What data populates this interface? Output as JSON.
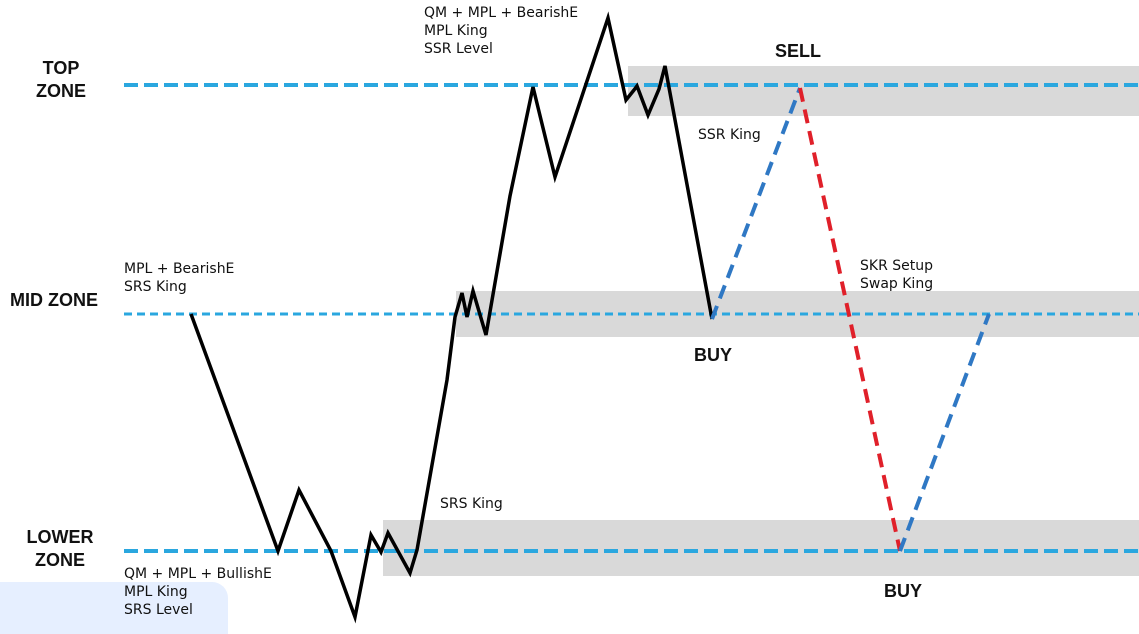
{
  "zones": {
    "top": [
      "TOP",
      "ZONE"
    ],
    "mid": "MID ZONE",
    "lower": [
      "LOWER",
      "ZONE"
    ]
  },
  "notes": {
    "top_confluence": [
      "QM + MPL + BearishE",
      "MPL King",
      "SSR Level"
    ],
    "mid_confluence": [
      "MPL + BearishE",
      "SRS King"
    ],
    "lower_confluence": [
      "QM + MPL + BullishE",
      "MPL King",
      "SRS Level"
    ],
    "ssr_king": "SSR King",
    "srs_king": "SRS King",
    "skr": [
      "SKR Setup",
      "Swap King"
    ]
  },
  "signals": {
    "sell": "SELL",
    "buy_mid": "BUY",
    "buy_low": "BUY"
  },
  "colors": {
    "level_line": "#2aa7df",
    "zone_band": "#d9d9d9",
    "price_path": "#000000",
    "projection_up": "#2f78c4",
    "projection_down": "#e0202a",
    "corner_tint": "#e6efff"
  }
}
